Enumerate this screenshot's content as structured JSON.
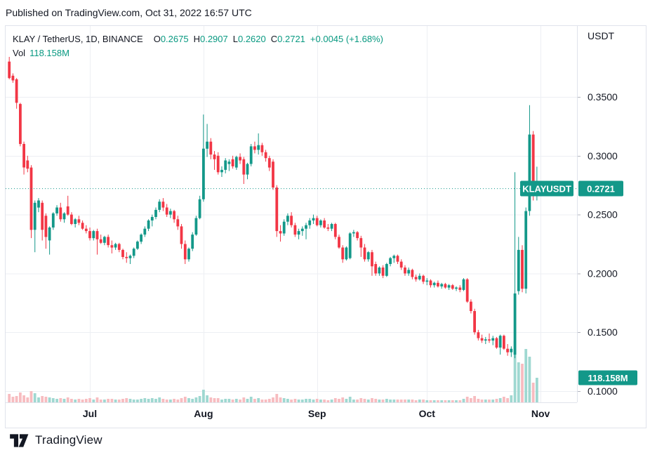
{
  "page": {
    "publish_info": "Published on TradingView.com, Oct 31, 2022 16:57 UTC",
    "footer_brand": "TradingView"
  },
  "legend": {
    "symbol_title": "KLAY / TetherUS, 1D, BINANCE",
    "o_label": "O",
    "o": "0.2675",
    "h_label": "H",
    "h": "0.2907",
    "l_label": "L",
    "l": "0.2620",
    "c_label": "C",
    "c": "0.2721",
    "change": "+0.0045 (+1.68%)",
    "vol_label": "Vol",
    "vol_value": "118.158M"
  },
  "axis": {
    "currency": "USDT"
  },
  "badges": {
    "symbol": "KLAYUSDT",
    "last_price": "0.2721",
    "volume": "118.158M"
  },
  "colors": {
    "up": "#139889",
    "down": "#f23645",
    "vol_up": "#9fd8d1",
    "vol_down": "#f7bcc0",
    "badge": "#139889",
    "grid": "#edeff3",
    "separator": "#e0e3eb",
    "axis_text": "#131722",
    "tick": "#b2b5be",
    "dotted_line": "#139889"
  },
  "chart_data": {
    "type": "candlestick",
    "title": "KLAY / TetherUS, 1D, BINANCE",
    "exchange": "BINANCE",
    "interval": "1D",
    "last_price": 0.2721,
    "last_volume_label": "118.158M",
    "y_axis_currency": "USDT",
    "ylim": [
      0.09,
      0.4
    ],
    "y_ticks": [
      {
        "value": 0.35,
        "label": "0.3500"
      },
      {
        "value": 0.3,
        "label": "0.3000"
      },
      {
        "value": 0.25,
        "label": "0.2500"
      },
      {
        "value": 0.2,
        "label": "0.2000"
      },
      {
        "value": 0.15,
        "label": "0.1500"
      },
      {
        "value": 0.1,
        "label": "0.1000"
      }
    ],
    "x_ticks": [
      {
        "label": "Jul",
        "index": 22
      },
      {
        "label": "Aug",
        "index": 53
      },
      {
        "label": "Sep",
        "index": 84
      },
      {
        "label": "Oct",
        "index": 114
      },
      {
        "label": "Nov",
        "index": 145
      }
    ],
    "candles_format": [
      "open",
      "high",
      "low",
      "close",
      "volume_px"
    ],
    "candles": [
      [
        0.38,
        0.384,
        0.365,
        0.366,
        12
      ],
      [
        0.368,
        0.37,
        0.362,
        0.364,
        8
      ],
      [
        0.365,
        0.366,
        0.34,
        0.345,
        9
      ],
      [
        0.344,
        0.345,
        0.308,
        0.31,
        14
      ],
      [
        0.31,
        0.312,
        0.284,
        0.29,
        10
      ],
      [
        0.296,
        0.3,
        0.286,
        0.289,
        7
      ],
      [
        0.29,
        0.292,
        0.23,
        0.237,
        16
      ],
      [
        0.237,
        0.262,
        0.218,
        0.26,
        13
      ],
      [
        0.256,
        0.264,
        0.252,
        0.262,
        7
      ],
      [
        0.26,
        0.262,
        0.228,
        0.237,
        9
      ],
      [
        0.249,
        0.251,
        0.221,
        0.231,
        8
      ],
      [
        0.228,
        0.24,
        0.216,
        0.239,
        7
      ],
      [
        0.239,
        0.252,
        0.237,
        0.251,
        6
      ],
      [
        0.251,
        0.258,
        0.249,
        0.256,
        5
      ],
      [
        0.256,
        0.26,
        0.244,
        0.246,
        6
      ],
      [
        0.246,
        0.252,
        0.243,
        0.251,
        5
      ],
      [
        0.257,
        0.266,
        0.249,
        0.25,
        7
      ],
      [
        0.25,
        0.252,
        0.241,
        0.242,
        5
      ],
      [
        0.242,
        0.247,
        0.239,
        0.246,
        4
      ],
      [
        0.246,
        0.249,
        0.241,
        0.243,
        5
      ],
      [
        0.243,
        0.245,
        0.237,
        0.238,
        4
      ],
      [
        0.238,
        0.241,
        0.234,
        0.236,
        5
      ],
      [
        0.236,
        0.239,
        0.228,
        0.23,
        6
      ],
      [
        0.23,
        0.237,
        0.228,
        0.236,
        4
      ],
      [
        0.236,
        0.238,
        0.216,
        0.229,
        7
      ],
      [
        0.229,
        0.233,
        0.225,
        0.226,
        4
      ],
      [
        0.226,
        0.232,
        0.224,
        0.231,
        4
      ],
      [
        0.231,
        0.233,
        0.222,
        0.224,
        5
      ],
      [
        0.224,
        0.228,
        0.217,
        0.222,
        5
      ],
      [
        0.222,
        0.226,
        0.22,
        0.225,
        4
      ],
      [
        0.225,
        0.226,
        0.218,
        0.22,
        4
      ],
      [
        0.22,
        0.221,
        0.212,
        0.214,
        5
      ],
      [
        0.214,
        0.218,
        0.209,
        0.213,
        6
      ],
      [
        0.213,
        0.216,
        0.208,
        0.215,
        5
      ],
      [
        0.215,
        0.222,
        0.213,
        0.221,
        4
      ],
      [
        0.221,
        0.228,
        0.22,
        0.227,
        4
      ],
      [
        0.227,
        0.234,
        0.225,
        0.233,
        5
      ],
      [
        0.233,
        0.24,
        0.231,
        0.238,
        6
      ],
      [
        0.238,
        0.246,
        0.236,
        0.245,
        5
      ],
      [
        0.245,
        0.25,
        0.24,
        0.248,
        6
      ],
      [
        0.248,
        0.256,
        0.246,
        0.254,
        5
      ],
      [
        0.254,
        0.263,
        0.252,
        0.261,
        7
      ],
      [
        0.261,
        0.264,
        0.253,
        0.256,
        5
      ],
      [
        0.256,
        0.259,
        0.248,
        0.25,
        4
      ],
      [
        0.25,
        0.255,
        0.247,
        0.253,
        4
      ],
      [
        0.253,
        0.254,
        0.243,
        0.246,
        5
      ],
      [
        0.246,
        0.249,
        0.237,
        0.24,
        4
      ],
      [
        0.24,
        0.242,
        0.221,
        0.225,
        6
      ],
      [
        0.225,
        0.228,
        0.208,
        0.212,
        8
      ],
      [
        0.212,
        0.222,
        0.21,
        0.221,
        6
      ],
      [
        0.221,
        0.235,
        0.219,
        0.233,
        5
      ],
      [
        0.233,
        0.249,
        0.232,
        0.247,
        7
      ],
      [
        0.247,
        0.266,
        0.246,
        0.263,
        9
      ],
      [
        0.263,
        0.335,
        0.261,
        0.306,
        18
      ],
      [
        0.306,
        0.327,
        0.299,
        0.312,
        10
      ],
      [
        0.312,
        0.315,
        0.297,
        0.301,
        7
      ],
      [
        0.301,
        0.304,
        0.288,
        0.297,
        6
      ],
      [
        0.3,
        0.303,
        0.284,
        0.286,
        6
      ],
      [
        0.286,
        0.291,
        0.282,
        0.288,
        4
      ],
      [
        0.288,
        0.298,
        0.285,
        0.296,
        5
      ],
      [
        0.293,
        0.297,
        0.287,
        0.295,
        5
      ],
      [
        0.297,
        0.3,
        0.289,
        0.291,
        4
      ],
      [
        0.29,
        0.3,
        0.288,
        0.299,
        5
      ],
      [
        0.299,
        0.302,
        0.293,
        0.296,
        4
      ],
      [
        0.297,
        0.299,
        0.276,
        0.284,
        7
      ],
      [
        0.284,
        0.294,
        0.28,
        0.293,
        5
      ],
      [
        0.293,
        0.31,
        0.291,
        0.308,
        8
      ],
      [
        0.308,
        0.312,
        0.302,
        0.305,
        5
      ],
      [
        0.305,
        0.319,
        0.301,
        0.309,
        6
      ],
      [
        0.309,
        0.311,
        0.3,
        0.303,
        4
      ],
      [
        0.303,
        0.305,
        0.295,
        0.298,
        4
      ],
      [
        0.298,
        0.3,
        0.287,
        0.29,
        5
      ],
      [
        0.295,
        0.297,
        0.271,
        0.273,
        7
      ],
      [
        0.273,
        0.275,
        0.231,
        0.236,
        12
      ],
      [
        0.236,
        0.241,
        0.227,
        0.234,
        7
      ],
      [
        0.234,
        0.246,
        0.232,
        0.244,
        6
      ],
      [
        0.244,
        0.251,
        0.241,
        0.249,
        5
      ],
      [
        0.249,
        0.252,
        0.239,
        0.241,
        4
      ],
      [
        0.241,
        0.243,
        0.231,
        0.233,
        5
      ],
      [
        0.233,
        0.238,
        0.229,
        0.236,
        4
      ],
      [
        0.236,
        0.24,
        0.232,
        0.238,
        4
      ],
      [
        0.238,
        0.243,
        0.229,
        0.241,
        5
      ],
      [
        0.241,
        0.247,
        0.238,
        0.245,
        5
      ],
      [
        0.245,
        0.25,
        0.242,
        0.247,
        4
      ],
      [
        0.247,
        0.249,
        0.24,
        0.241,
        5
      ],
      [
        0.241,
        0.246,
        0.239,
        0.245,
        4
      ],
      [
        0.245,
        0.247,
        0.238,
        0.239,
        4
      ],
      [
        0.239,
        0.242,
        0.236,
        0.238,
        3
      ],
      [
        0.238,
        0.243,
        0.236,
        0.242,
        4
      ],
      [
        0.242,
        0.243,
        0.229,
        0.231,
        6
      ],
      [
        0.231,
        0.233,
        0.221,
        0.222,
        5
      ],
      [
        0.222,
        0.224,
        0.209,
        0.212,
        7
      ],
      [
        0.212,
        0.223,
        0.211,
        0.222,
        5
      ],
      [
        0.213,
        0.235,
        0.212,
        0.234,
        8
      ],
      [
        0.234,
        0.237,
        0.231,
        0.235,
        4
      ],
      [
        0.235,
        0.236,
        0.228,
        0.23,
        4
      ],
      [
        0.23,
        0.232,
        0.214,
        0.222,
        6
      ],
      [
        0.222,
        0.225,
        0.21,
        0.212,
        5
      ],
      [
        0.212,
        0.219,
        0.21,
        0.218,
        4
      ],
      [
        0.218,
        0.22,
        0.198,
        0.206,
        6
      ],
      [
        0.208,
        0.21,
        0.198,
        0.2,
        5
      ],
      [
        0.2,
        0.206,
        0.198,
        0.205,
        4
      ],
      [
        0.205,
        0.207,
        0.196,
        0.198,
        4
      ],
      [
        0.198,
        0.209,
        0.197,
        0.208,
        5
      ],
      [
        0.208,
        0.214,
        0.206,
        0.213,
        4
      ],
      [
        0.213,
        0.216,
        0.209,
        0.215,
        4
      ],
      [
        0.215,
        0.216,
        0.208,
        0.21,
        4
      ],
      [
        0.21,
        0.212,
        0.203,
        0.205,
        4
      ],
      [
        0.205,
        0.207,
        0.198,
        0.2,
        4
      ],
      [
        0.2,
        0.205,
        0.198,
        0.203,
        4
      ],
      [
        0.203,
        0.204,
        0.195,
        0.197,
        4
      ],
      [
        0.197,
        0.199,
        0.193,
        0.195,
        3
      ],
      [
        0.195,
        0.2,
        0.194,
        0.198,
        4
      ],
      [
        0.198,
        0.199,
        0.191,
        0.193,
        4
      ],
      [
        0.193,
        0.196,
        0.19,
        0.194,
        3
      ],
      [
        0.194,
        0.195,
        0.188,
        0.19,
        3
      ],
      [
        0.19,
        0.193,
        0.188,
        0.192,
        3
      ],
      [
        0.192,
        0.194,
        0.188,
        0.189,
        3
      ],
      [
        0.189,
        0.192,
        0.187,
        0.191,
        3
      ],
      [
        0.191,
        0.192,
        0.187,
        0.188,
        3
      ],
      [
        0.188,
        0.191,
        0.186,
        0.19,
        3
      ],
      [
        0.19,
        0.191,
        0.186,
        0.187,
        3
      ],
      [
        0.187,
        0.189,
        0.185,
        0.188,
        3
      ],
      [
        0.188,
        0.19,
        0.184,
        0.186,
        3
      ],
      [
        0.186,
        0.196,
        0.185,
        0.195,
        5
      ],
      [
        0.195,
        0.196,
        0.175,
        0.176,
        8
      ],
      [
        0.176,
        0.178,
        0.166,
        0.168,
        6
      ],
      [
        0.168,
        0.17,
        0.148,
        0.15,
        9
      ],
      [
        0.15,
        0.152,
        0.143,
        0.145,
        5
      ],
      [
        0.145,
        0.148,
        0.141,
        0.143,
        4
      ],
      [
        0.143,
        0.146,
        0.14,
        0.144,
        4
      ],
      [
        0.144,
        0.149,
        0.141,
        0.143,
        4
      ],
      [
        0.143,
        0.147,
        0.139,
        0.145,
        4
      ],
      [
        0.145,
        0.146,
        0.136,
        0.137,
        5
      ],
      [
        0.137,
        0.148,
        0.131,
        0.147,
        6
      ],
      [
        0.147,
        0.148,
        0.135,
        0.136,
        8
      ],
      [
        0.136,
        0.14,
        0.13,
        0.133,
        6
      ],
      [
        0.133,
        0.138,
        0.129,
        0.136,
        10
      ],
      [
        0.131,
        0.286,
        0.128,
        0.183,
        88
      ],
      [
        0.185,
        0.231,
        0.182,
        0.22,
        57
      ],
      [
        0.22,
        0.224,
        0.184,
        0.187,
        55
      ],
      [
        0.187,
        0.256,
        0.183,
        0.253,
        76
      ],
      [
        0.253,
        0.343,
        0.249,
        0.318,
        65
      ],
      [
        0.318,
        0.321,
        0.262,
        0.27,
        28
      ],
      [
        0.2675,
        0.2907,
        0.262,
        0.2721,
        35
      ]
    ]
  }
}
